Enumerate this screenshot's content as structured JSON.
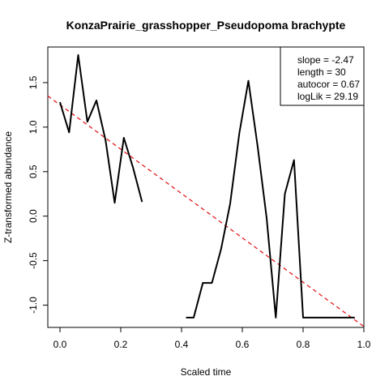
{
  "chart_data": {
    "type": "line",
    "title": "KonzaPrairie_grasshopper_Pseudopoma brachypte",
    "xlabel": "Scaled time",
    "ylabel": "Z-transformed abundance",
    "xlim": [
      -0.04,
      1.0
    ],
    "ylim": [
      -1.25,
      1.9
    ],
    "x_ticks": [
      0.0,
      0.2,
      0.4,
      0.6,
      0.8,
      1.0
    ],
    "x_tick_labels": [
      "0.0",
      "0.2",
      "0.4",
      "0.6",
      "0.8",
      "1.0"
    ],
    "y_ticks": [
      -1.0,
      -0.5,
      0.0,
      0.5,
      1.0,
      1.5
    ],
    "y_tick_labels": [
      "-1.0",
      "-0.5",
      "0.0",
      "0.5",
      "1.0",
      "1.5"
    ],
    "grid": false,
    "legend_position": "top-right",
    "stats": [
      "slope = -2.47",
      "length = 30",
      "autocor = 0.67",
      "logLik = 29.19"
    ],
    "series": [
      {
        "segments": [
          [
            [
              0.0,
              1.28
            ],
            [
              0.03,
              0.94
            ],
            [
              0.06,
              1.81
            ],
            [
              0.09,
              1.06
            ],
            [
              0.12,
              1.3
            ],
            [
              0.15,
              0.85
            ],
            [
              0.18,
              0.15
            ],
            [
              0.21,
              0.88
            ],
            [
              0.24,
              0.55
            ],
            [
              0.27,
              0.16
            ]
          ],
          [
            [
              0.415,
              -1.14
            ],
            [
              0.44,
              -1.14
            ],
            [
              0.47,
              -0.75
            ],
            [
              0.5,
              -0.75
            ],
            [
              0.53,
              -0.37
            ],
            [
              0.56,
              0.14
            ],
            [
              0.59,
              0.93
            ],
            [
              0.62,
              1.52
            ],
            [
              0.65,
              0.79
            ],
            [
              0.68,
              -0.02
            ],
            [
              0.71,
              -1.14
            ],
            [
              0.74,
              0.25
            ],
            [
              0.77,
              0.63
            ],
            [
              0.8,
              -1.14
            ],
            [
              0.83,
              -1.14
            ],
            [
              0.86,
              -1.14
            ],
            [
              0.89,
              -1.14
            ],
            [
              0.92,
              -1.14
            ],
            [
              0.95,
              -1.14
            ],
            [
              0.97,
              -1.14
            ]
          ]
        ],
        "color": "#000000"
      }
    ],
    "trend_line": {
      "points": [
        [
          -0.04,
          1.35
        ],
        [
          1.0,
          -1.24
        ]
      ],
      "color": "#e31a1c",
      "style": "dashed"
    }
  }
}
